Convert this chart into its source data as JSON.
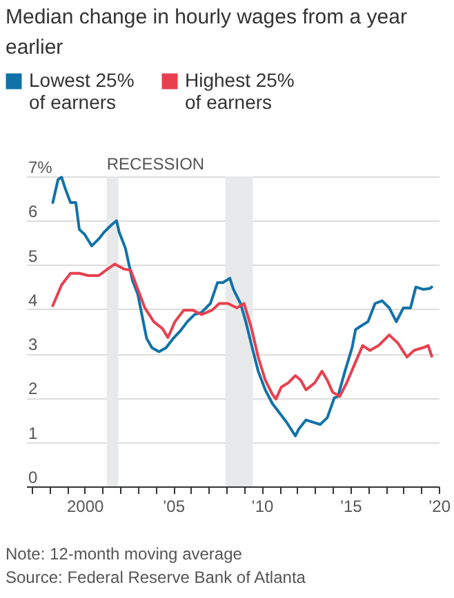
{
  "chart_data": {
    "type": "line",
    "title": "Median change in hourly wages from a year earlier",
    "xlim": [
      1996.7,
      2020
    ],
    "ylim": [
      0,
      7
    ],
    "xticks": [
      {
        "value": 1997,
        "label": null
      },
      {
        "value": 1998,
        "label": null
      },
      {
        "value": 1999,
        "label": null
      },
      {
        "value": 2000,
        "label": "2000"
      },
      {
        "value": 2001,
        "label": null
      },
      {
        "value": 2002,
        "label": null
      },
      {
        "value": 2003,
        "label": null
      },
      {
        "value": 2004,
        "label": null
      },
      {
        "value": 2005,
        "label": "’05"
      },
      {
        "value": 2006,
        "label": null
      },
      {
        "value": 2007,
        "label": null
      },
      {
        "value": 2008,
        "label": null
      },
      {
        "value": 2009,
        "label": null
      },
      {
        "value": 2010,
        "label": "’10"
      },
      {
        "value": 2011,
        "label": null
      },
      {
        "value": 2012,
        "label": null
      },
      {
        "value": 2013,
        "label": null
      },
      {
        "value": 2014,
        "label": null
      },
      {
        "value": 2015,
        "label": "’15"
      },
      {
        "value": 2016,
        "label": null
      },
      {
        "value": 2017,
        "label": null
      },
      {
        "value": 2018,
        "label": null
      },
      {
        "value": 2019,
        "label": null
      },
      {
        "value": 2020,
        "label": "’20"
      }
    ],
    "yticks": [
      0,
      1,
      2,
      3,
      4,
      5,
      6,
      {
        "value": 7,
        "label": "7%"
      }
    ],
    "grid": "y",
    "legend": "top left",
    "bands": [
      {
        "axis": "x",
        "from": 2001.25,
        "to": 2001.9,
        "label": "RECESSION",
        "color": "#e8e9eb"
      },
      {
        "axis": "x",
        "from": 2007.95,
        "to": 2009.5,
        "color": "#e8e9eb"
      }
    ],
    "series": [
      {
        "name": "Lowest 25% of earners",
        "color": "#1172a8",
        "x": [
          1998.2,
          1998.5,
          1998.7,
          1998.9,
          1999.2,
          1999.5,
          1999.7,
          2000.0,
          2000.4,
          2000.8,
          2001.1,
          2001.5,
          2001.8,
          2001.95,
          2002.3,
          2002.7,
          2003.0,
          2003.5,
          2003.8,
          2004.2,
          2004.6,
          2005.0,
          2005.4,
          2005.8,
          2006.2,
          2006.6,
          2007.1,
          2007.5,
          2007.8,
          2008.2,
          2008.4,
          2008.8,
          2009.1,
          2009.4,
          2009.8,
          2010.2,
          2010.6,
          2011.0,
          2011.4,
          2011.9,
          2012.1,
          2012.5,
          2012.9,
          2013.3,
          2013.7,
          2014.1,
          2014.3,
          2014.7,
          2015.1,
          2015.3,
          2015.6,
          2016.0,
          2016.4,
          2016.8,
          2017.2,
          2017.6,
          2018.0,
          2018.4,
          2018.7,
          2019.1,
          2019.5,
          2019.6
        ],
        "values": [
          6.41,
          6.93,
          6.98,
          6.73,
          6.41,
          6.41,
          5.8,
          5.69,
          5.43,
          5.59,
          5.74,
          5.9,
          6.0,
          5.74,
          5.38,
          4.65,
          4.34,
          3.34,
          3.13,
          3.04,
          3.13,
          3.34,
          3.51,
          3.72,
          3.88,
          3.93,
          4.13,
          4.6,
          4.6,
          4.7,
          4.45,
          4.13,
          3.72,
          3.23,
          2.6,
          2.18,
          1.87,
          1.66,
          1.45,
          1.14,
          1.3,
          1.5,
          1.45,
          1.4,
          1.55,
          2.0,
          2.03,
          2.6,
          3.13,
          3.54,
          3.62,
          3.72,
          4.13,
          4.19,
          4.03,
          3.72,
          4.03,
          4.03,
          4.5,
          4.45,
          4.47,
          4.5
        ]
      },
      {
        "name": "Highest 25% of earners",
        "color": "#e8404f",
        "x": [
          1998.2,
          1998.7,
          1999.2,
          1999.7,
          2000.2,
          2000.8,
          2001.3,
          2001.7,
          2002.2,
          2002.6,
          2003.0,
          2003.4,
          2003.9,
          2004.4,
          2004.7,
          2005.1,
          2005.6,
          2006.1,
          2006.6,
          2007.2,
          2007.6,
          2008.1,
          2008.6,
          2009.0,
          2009.4,
          2009.8,
          2010.2,
          2010.6,
          2010.8,
          2011.1,
          2011.5,
          2011.9,
          2012.2,
          2012.5,
          2013.0,
          2013.4,
          2013.7,
          2014.0,
          2014.4,
          2014.8,
          2015.3,
          2015.7,
          2016.1,
          2016.6,
          2017.2,
          2017.7,
          2018.2,
          2018.6,
          2019.1,
          2019.4,
          2019.6
        ],
        "values": [
          4.08,
          4.55,
          4.81,
          4.81,
          4.76,
          4.76,
          4.91,
          5.02,
          4.91,
          4.88,
          4.45,
          4.03,
          3.72,
          3.56,
          3.36,
          3.72,
          3.98,
          3.98,
          3.88,
          3.98,
          4.13,
          4.13,
          4.03,
          4.13,
          3.6,
          2.92,
          2.4,
          2.08,
          1.97,
          2.24,
          2.34,
          2.5,
          2.4,
          2.18,
          2.34,
          2.6,
          2.4,
          2.13,
          2.03,
          2.34,
          2.81,
          3.18,
          3.07,
          3.18,
          3.42,
          3.23,
          2.92,
          3.07,
          3.13,
          3.18,
          2.94
        ]
      }
    ],
    "annotations": [
      "Note: 12-month moving average",
      "Source: Federal Reserve Bank of Atlanta"
    ]
  }
}
